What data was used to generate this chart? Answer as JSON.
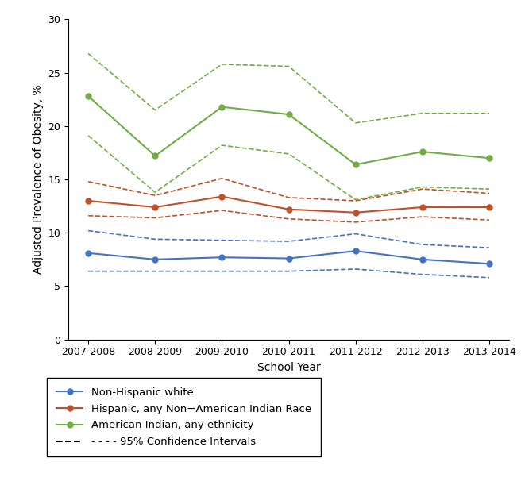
{
  "school_years": [
    "2007-2008",
    "2008-2009",
    "2009-2010",
    "2010-2011",
    "2011-2012",
    "2012-2013",
    "2013-2014"
  ],
  "white_main": [
    8.1,
    7.5,
    7.7,
    7.6,
    8.3,
    7.5,
    7.1
  ],
  "white_ci_low": [
    6.4,
    6.4,
    6.4,
    6.4,
    6.6,
    6.1,
    5.8
  ],
  "white_ci_high": [
    10.2,
    9.4,
    9.3,
    9.2,
    9.9,
    8.9,
    8.6
  ],
  "hispanic_main": [
    13.0,
    12.4,
    13.4,
    12.2,
    11.9,
    12.4,
    12.4
  ],
  "hispanic_ci_low": [
    11.6,
    11.4,
    12.1,
    11.3,
    11.0,
    11.5,
    11.2
  ],
  "hispanic_ci_high": [
    14.8,
    13.5,
    15.1,
    13.3,
    13.0,
    14.1,
    13.7
  ],
  "indian_main": [
    22.8,
    17.2,
    21.8,
    21.1,
    16.4,
    17.6,
    17.0
  ],
  "indian_ci_low": [
    19.1,
    13.8,
    18.2,
    17.4,
    13.1,
    14.3,
    14.1
  ],
  "indian_ci_high": [
    26.8,
    21.5,
    25.8,
    25.6,
    20.3,
    21.2,
    21.2
  ],
  "white_color": "#4472C4",
  "hispanic_color": "#C0502A",
  "indian_color": "#70AD47",
  "ci_legend_color": "#000000",
  "ylabel": "Adjusted Prevalence of Obesity, %",
  "xlabel": "School Year",
  "ylim": [
    0,
    30
  ],
  "yticks": [
    0,
    5,
    10,
    15,
    20,
    25,
    30
  ],
  "legend_labels": [
    "Non-Hispanic white",
    "Hispanic, any Non−American Indian Race",
    "American Indian, any ethnicity",
    "- - - - 95% Confidence Intervals"
  ]
}
